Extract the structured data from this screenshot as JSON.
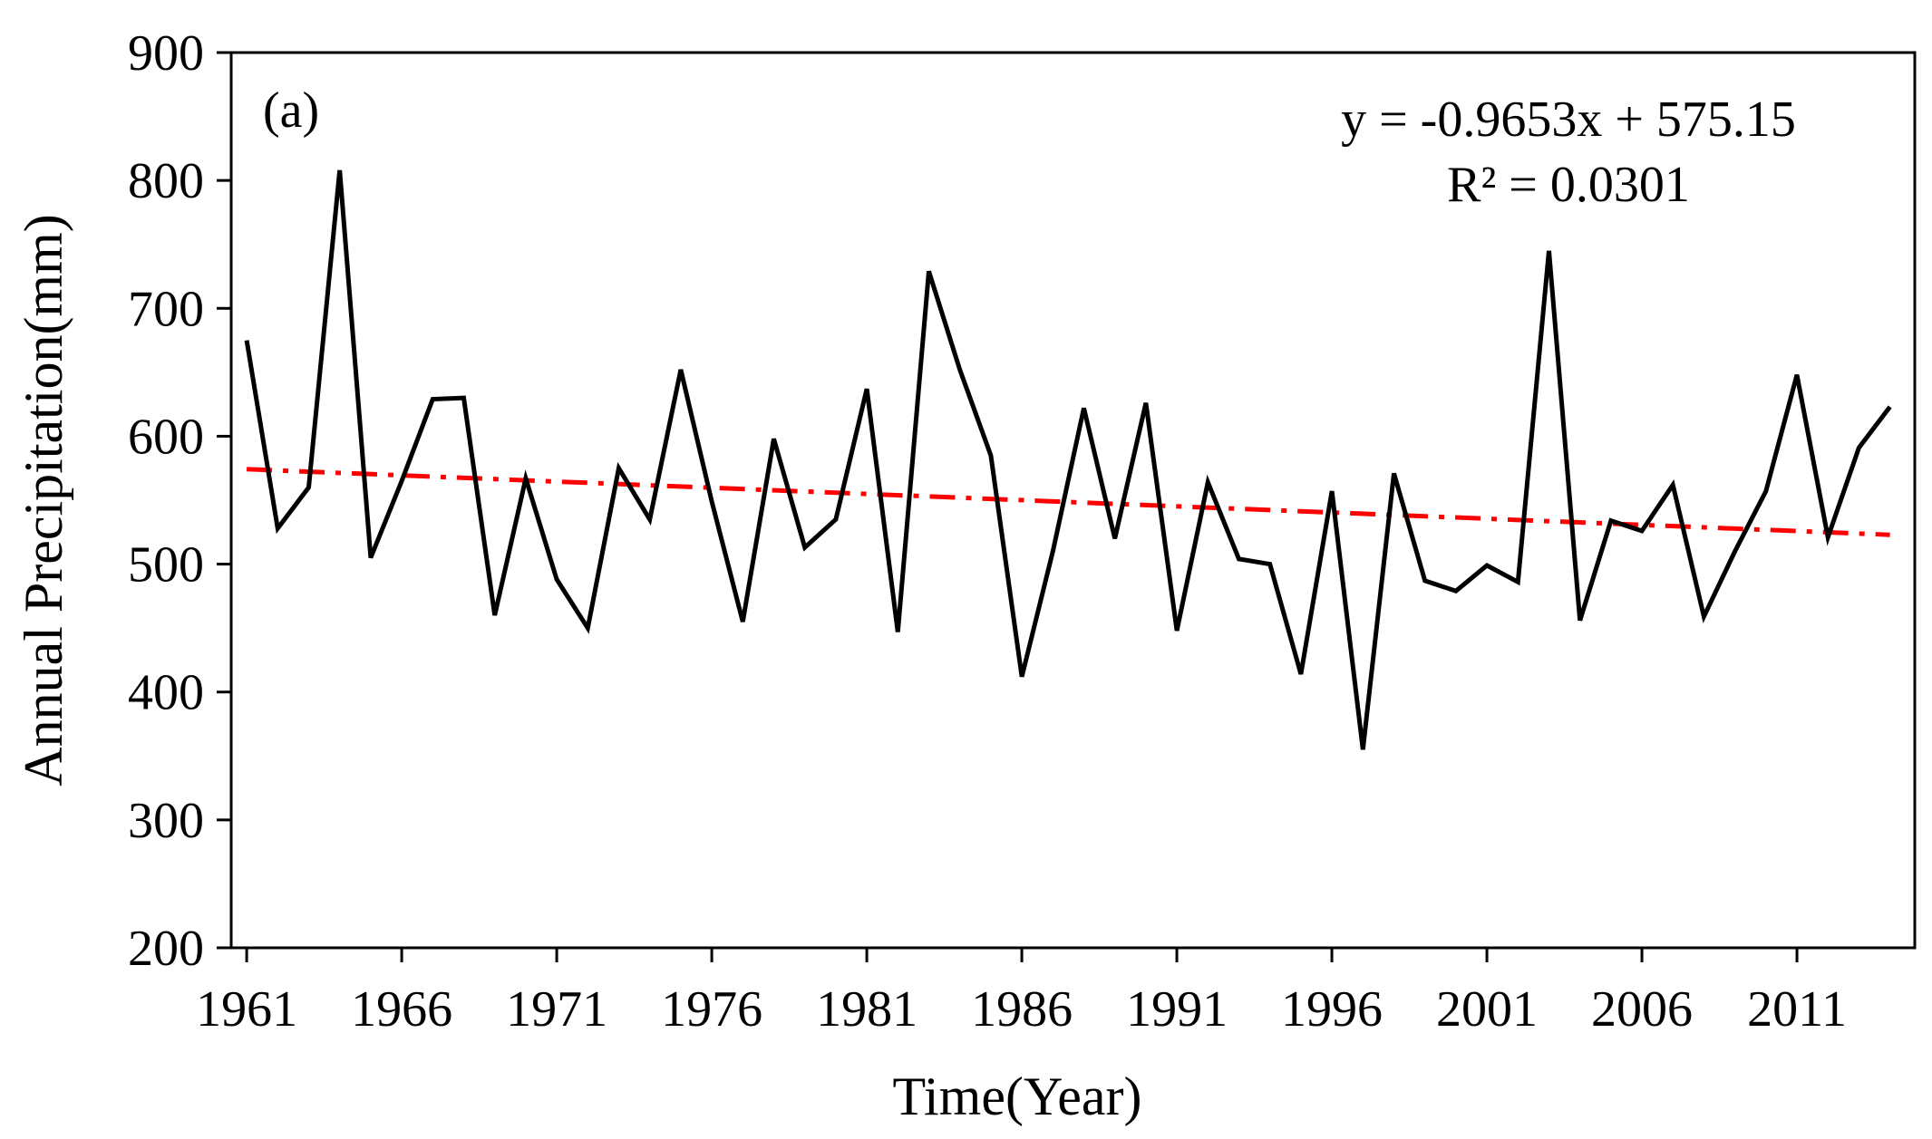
{
  "chart_data": {
    "type": "line",
    "panel_label": "(a)",
    "xlabel": "Time(Year)",
    "ylabel": "Annual Precipitation(mm)",
    "ylim": [
      200,
      900
    ],
    "xlim": [
      1960.5,
      2014.8
    ],
    "y_ticks": [
      200,
      300,
      400,
      500,
      600,
      700,
      800,
      900
    ],
    "x_ticks": [
      1961,
      1966,
      1971,
      1976,
      1981,
      1986,
      1991,
      1996,
      2001,
      2006,
      2011
    ],
    "grid": false,
    "trend_equation": "y = -0.9653x + 575.15",
    "r_squared": "R² = 0.0301",
    "colors": {
      "series": "#000000",
      "trend": "#ff0000",
      "axis": "#000000"
    },
    "series": [
      {
        "x": [
          1961,
          1962,
          1963,
          1964,
          1965,
          1966,
          1967,
          1968,
          1969,
          1970,
          1971,
          1972,
          1973,
          1974,
          1975,
          1976,
          1977,
          1978,
          1979,
          1980,
          1981,
          1982,
          1983,
          1984,
          1985,
          1986,
          1987,
          1988,
          1989,
          1990,
          1991,
          1992,
          1993,
          1994,
          1995,
          1996,
          1997,
          1998,
          1999,
          2000,
          2001,
          2002,
          2003,
          2004,
          2005,
          2006,
          2007,
          2008,
          2009,
          2010,
          2011,
          2012,
          2013,
          2014
        ],
        "values": [
          675,
          528,
          560,
          808,
          505,
          565,
          629,
          630,
          460,
          567,
          488,
          450,
          575,
          535,
          652,
          549,
          455,
          598,
          513,
          535,
          637,
          447,
          729,
          652,
          585,
          412,
          510,
          622,
          520,
          626,
          448,
          564,
          504,
          500,
          414,
          557,
          355,
          571,
          487,
          479,
          499,
          486,
          745,
          456,
          534,
          526,
          562,
          459,
          510,
          557,
          648,
          521,
          591,
          623
        ]
      }
    ],
    "trend_line": {
      "x": [
        1961,
        2014
      ],
      "y": [
        574.2,
        522.9
      ]
    }
  }
}
